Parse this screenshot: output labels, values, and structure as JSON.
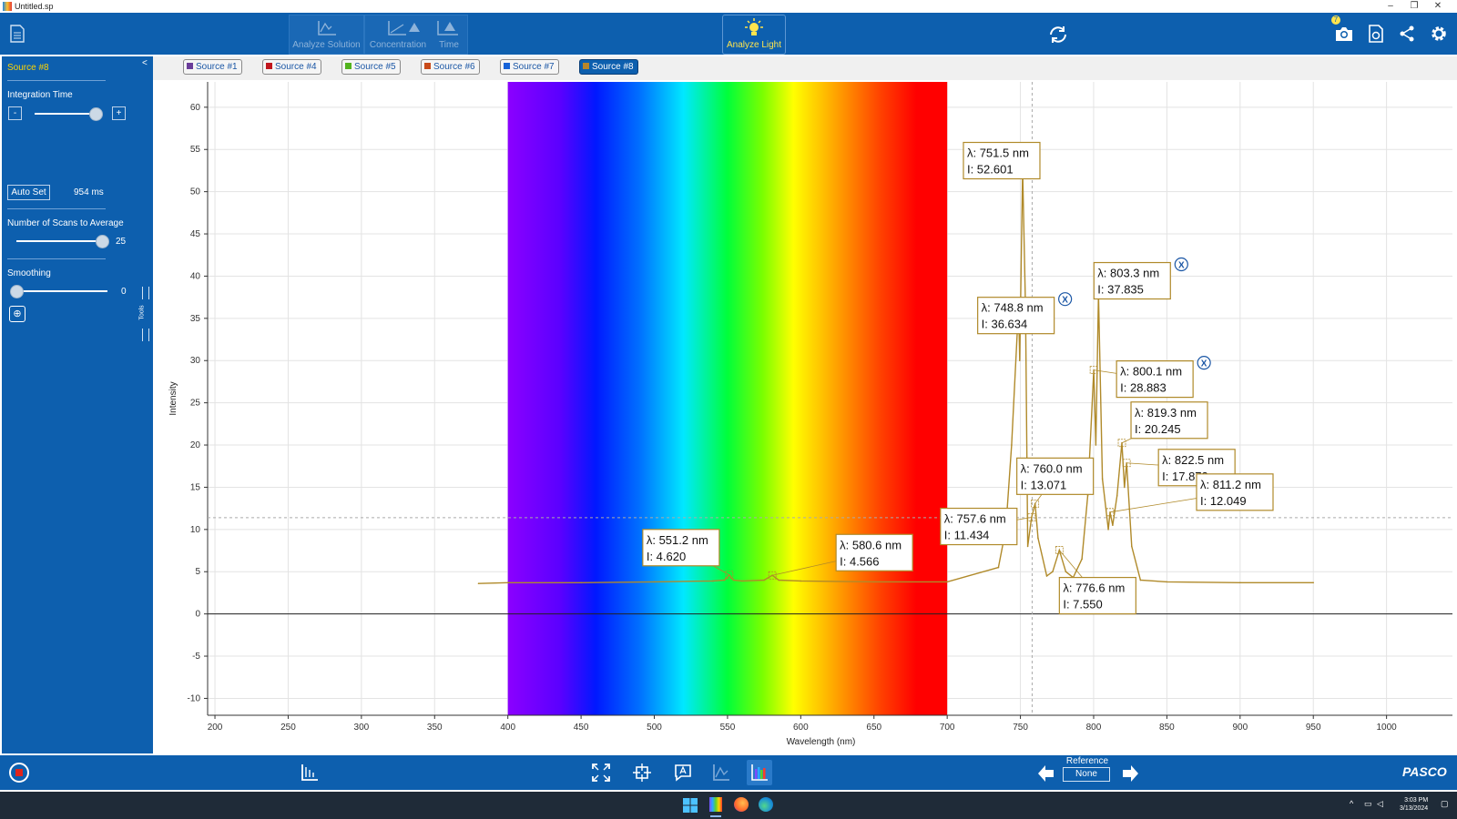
{
  "window": {
    "title": "Untitled.sp"
  },
  "toolbar": {
    "modes": [
      {
        "label": "Analyze Solution"
      },
      {
        "label": "Concentration"
      },
      {
        "label": "Time"
      }
    ],
    "analyze_light_label": "Analyze Light",
    "camera_badge": "7"
  },
  "sidebar": {
    "source_title": "Source #8",
    "integration_label": "Integration Time",
    "integration_minus": "-",
    "integration_plus": "+",
    "integration_fraction": 0.95,
    "auto_set_label": "Auto Set",
    "integration_value": "954 ms",
    "scans_label": "Number of Scans to Average",
    "scans_value": "25",
    "scans_fraction": 1.0,
    "smoothing_label": "Smoothing",
    "smoothing_value": "0",
    "smoothing_fraction": 0.0,
    "tools_label": "Tools"
  },
  "tabs": [
    {
      "label": "Source #1",
      "color": "#6a3d9a",
      "active": false
    },
    {
      "label": "Source #4",
      "color": "#c0161d",
      "active": false
    },
    {
      "label": "Source #5",
      "color": "#52b31e",
      "active": false
    },
    {
      "label": "Source #6",
      "color": "#c84a1a",
      "active": false
    },
    {
      "label": "Source #7",
      "color": "#1763d8",
      "active": false
    },
    {
      "label": "Source #8",
      "color": "#b8862a",
      "active": true
    }
  ],
  "bottom": {
    "reference_label": "Reference",
    "reference_value": "None",
    "brand": "PASCO"
  },
  "taskbar": {
    "time": "3:03 PM",
    "date": "3/13/2024"
  },
  "chart_data": {
    "type": "line",
    "xlabel": "Wavelength (nm)",
    "ylabel": "Intensity",
    "xlim": [
      195,
      1045
    ],
    "ylim": [
      -12,
      63
    ],
    "xticks": [
      200,
      250,
      300,
      350,
      400,
      450,
      500,
      550,
      600,
      650,
      700,
      750,
      800,
      850,
      900,
      950,
      1000
    ],
    "yticks": [
      -10,
      -5,
      0,
      5,
      10,
      15,
      20,
      25,
      30,
      35,
      40,
      45,
      50,
      55,
      60
    ],
    "grid": true,
    "spectrum_band": [
      400,
      700
    ],
    "crosshair": {
      "x": 758,
      "y": 11.4
    },
    "series": [
      {
        "color": "#b08a2a",
        "x": [
          380,
          400,
          450,
          500,
          540,
          548,
          551.2,
          554,
          560,
          575,
          580.6,
          585,
          600,
          650,
          700,
          735,
          740,
          744,
          748.8,
          749.5,
          751.5,
          753.5,
          755,
          757.6,
          760,
          762,
          768,
          772,
          776.6,
          781,
          786,
          792,
          796,
          800.1,
          801.5,
          803.3,
          806,
          810,
          811.2,
          813,
          816,
          819.3,
          821,
          822.5,
          826,
          832,
          850,
          900,
          950
        ],
        "y": [
          3.6,
          3.7,
          3.7,
          3.8,
          3.9,
          4.0,
          4.62,
          4.0,
          3.9,
          4.0,
          4.57,
          4.0,
          3.9,
          3.8,
          3.8,
          5.5,
          10.0,
          20.0,
          36.6,
          30.0,
          52.6,
          36.0,
          8.0,
          11.43,
          13.07,
          9.0,
          4.5,
          5.0,
          7.55,
          5.0,
          4.3,
          6.5,
          14.0,
          28.88,
          20.0,
          37.84,
          16.0,
          10.0,
          12.05,
          10.5,
          14.0,
          20.25,
          15.0,
          17.87,
          8.0,
          4.0,
          3.8,
          3.7,
          3.7
        ]
      }
    ],
    "annotations": [
      {
        "wavelength": "λ: 751.5 nm",
        "intensity": "I: 52.601",
        "x": 751.5,
        "y": 52.601
      },
      {
        "wavelength": "λ: 748.8 nm",
        "intensity": "I: 36.634",
        "x": 748.8,
        "y": 36.634,
        "removable": true
      },
      {
        "wavelength": "λ: 803.3 nm",
        "intensity": "I: 37.835",
        "x": 803.3,
        "y": 37.835,
        "removable": true
      },
      {
        "wavelength": "λ: 800.1 nm",
        "intensity": "I: 28.883",
        "x": 800.1,
        "y": 28.883,
        "removable": true
      },
      {
        "wavelength": "λ: 819.3 nm",
        "intensity": "I: 20.245",
        "x": 819.3,
        "y": 20.245
      },
      {
        "wavelength": "λ: 822.5 nm",
        "intensity": "I: 17.873",
        "x": 822.5,
        "y": 17.873
      },
      {
        "wavelength": "λ: 760.0 nm",
        "intensity": "I: 13.071",
        "x": 760.0,
        "y": 13.071
      },
      {
        "wavelength": "λ: 551.2 nm",
        "intensity": "I: 4.620",
        "x": 551.2,
        "y": 4.62
      },
      {
        "wavelength": "λ: 580.6 nm",
        "intensity": "I: 4.566",
        "x": 580.6,
        "y": 4.566
      },
      {
        "wavelength": "λ: 757.6 nm",
        "intensity": "I: 11.434",
        "x": 757.6,
        "y": 11.434
      },
      {
        "wavelength": "λ: 811.2 nm",
        "intensity": "I: 12.049",
        "x": 811.2,
        "y": 12.049
      },
      {
        "wavelength": "λ: 776.6 nm",
        "intensity": "I: 7.550",
        "x": 776.6,
        "y": 7.55
      }
    ]
  }
}
